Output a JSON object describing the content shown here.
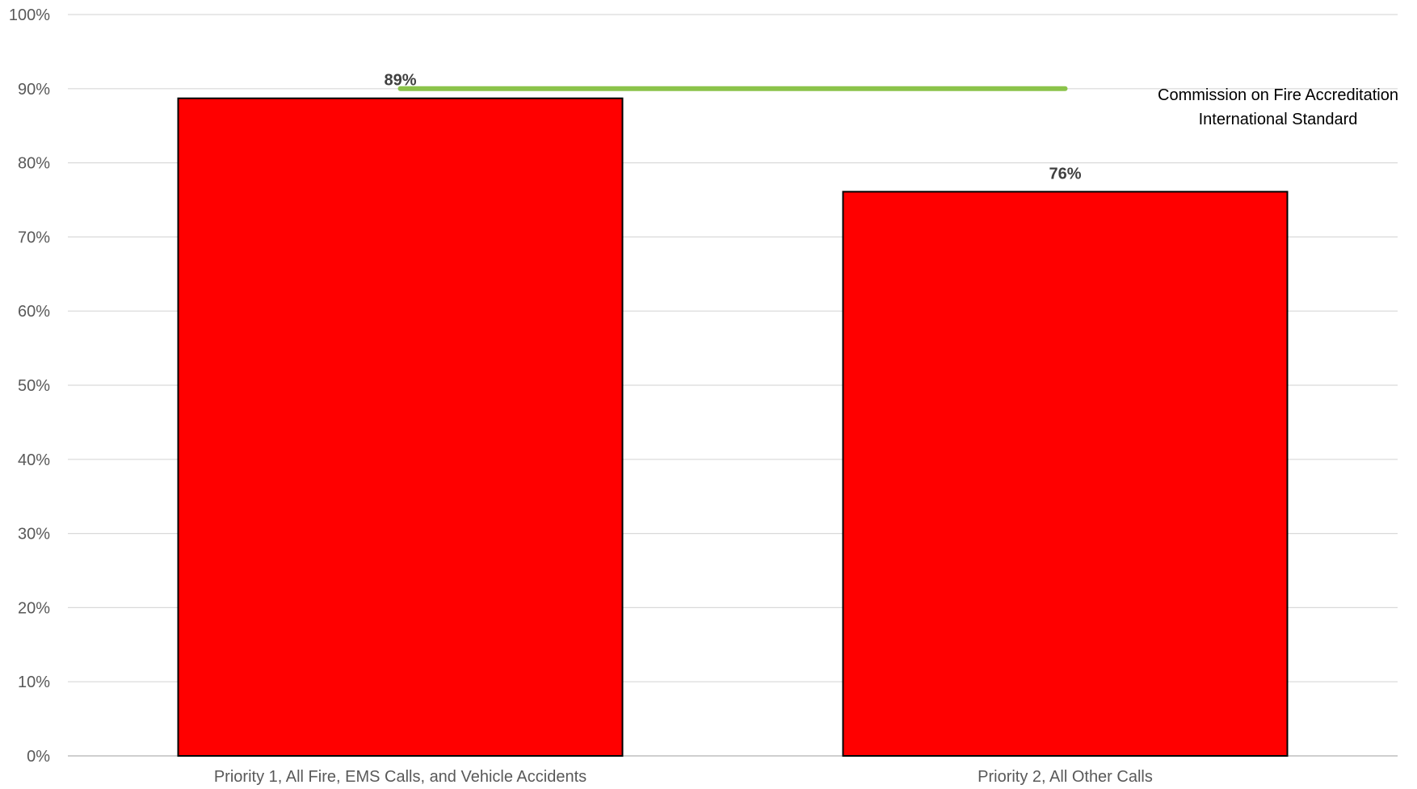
{
  "chart_data": {
    "type": "bar",
    "categories": [
      "Priority 1, All Fire, EMS Calls, and Vehicle Accidents",
      "Priority 2, All Other Calls"
    ],
    "values": [
      88.7,
      76.1
    ],
    "data_labels": [
      "89%",
      "76%"
    ],
    "ylim": [
      0,
      100
    ],
    "ytick_values": [
      0,
      10,
      20,
      30,
      40,
      50,
      60,
      70,
      80,
      90,
      100
    ],
    "ytick_labels": [
      "0%",
      "10%",
      "20%",
      "30%",
      "40%",
      "50%",
      "60%",
      "70%",
      "80%",
      "90%",
      "100%"
    ],
    "grid": true,
    "legend": "none",
    "bar_color": "#ff0000",
    "bar_outline_color": "#000000",
    "reference_line": {
      "value": 90,
      "color": "#8bc34a",
      "label_lines": [
        "Commission on Fire Accreditation",
        "International Standard"
      ]
    }
  }
}
